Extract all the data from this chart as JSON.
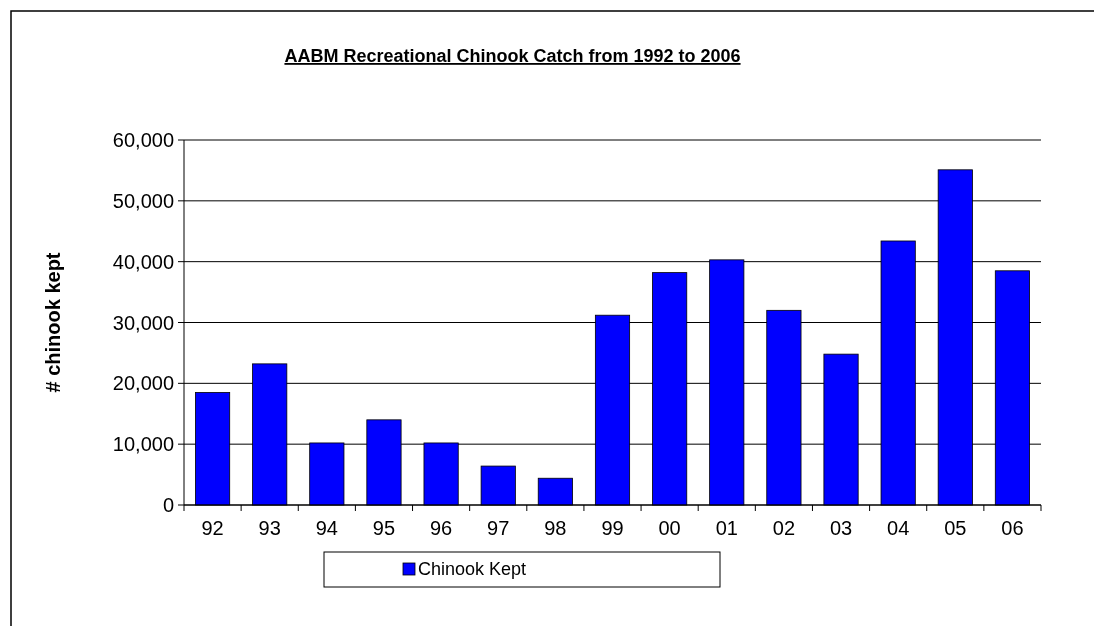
{
  "chart_data": {
    "type": "bar",
    "title": "AABM Recreational Chinook Catch from 1992 to 2006",
    "ylabel": "# chinook kept",
    "categories": [
      "92",
      "93",
      "94",
      "95",
      "96",
      "97",
      "98",
      "99",
      "00",
      "01",
      "02",
      "03",
      "04",
      "05",
      "06"
    ],
    "series": [
      {
        "name": "Chinook Kept",
        "color": "#0000ff",
        "values": [
          18500,
          23200,
          10200,
          14000,
          10200,
          6400,
          4400,
          31200,
          38200,
          40300,
          32000,
          24800,
          43400,
          55100,
          38500
        ]
      }
    ],
    "ylim": [
      0,
      60000
    ],
    "yticks": [
      {
        "value": 0,
        "label": "0"
      },
      {
        "value": 10000,
        "label": "10,000"
      },
      {
        "value": 20000,
        "label": "20,000"
      },
      {
        "value": 30000,
        "label": "30,000"
      },
      {
        "value": 40000,
        "label": "40,000"
      },
      {
        "value": 50000,
        "label": "50,000"
      },
      {
        "value": 60000,
        "label": "60,000"
      }
    ],
    "grid": "y",
    "legend": "bottom"
  }
}
